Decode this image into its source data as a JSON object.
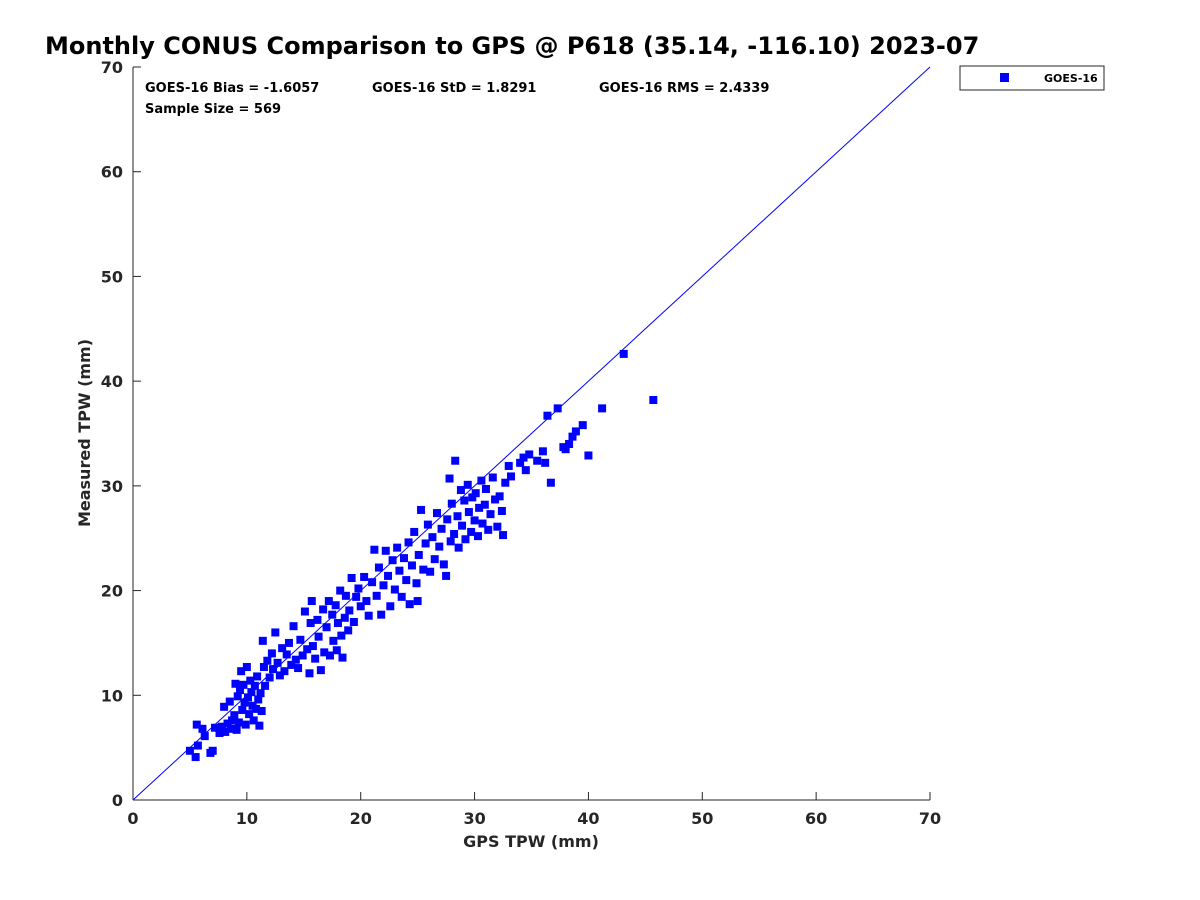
{
  "chart_data": {
    "type": "scatter",
    "title": "Monthly CONUS Comparison to GPS @ P618 (35.14, -116.10) 2023-07",
    "xlabel": "GPS TPW (mm)",
    "ylabel": "Measured TPW (mm)",
    "xlim": [
      0,
      70
    ],
    "ylim": [
      0,
      70
    ],
    "xticks": [
      "0",
      "10",
      "20",
      "30",
      "40",
      "50",
      "60",
      "70"
    ],
    "yticks": [
      "0",
      "10",
      "20",
      "30",
      "40",
      "50",
      "60",
      "70"
    ],
    "grid": false,
    "legend_position": "outside-top-right",
    "reference_line": {
      "from": [
        0,
        0
      ],
      "to": [
        70,
        70
      ],
      "color": "#0000ff"
    },
    "stats": {
      "bias": "GOES-16 Bias = -1.6057",
      "std": "GOES-16 StD = 1.8291",
      "rms": "GOES-16 RMS = 2.4339",
      "sample": "Sample Size = 569"
    },
    "series": [
      {
        "name": "GOES-16",
        "color": "#0000ff",
        "marker": "square",
        "points": [
          [
            5.0,
            4.7
          ],
          [
            5.5,
            4.1
          ],
          [
            5.7,
            5.2
          ],
          [
            5.6,
            7.2
          ],
          [
            6.1,
            6.8
          ],
          [
            6.3,
            6.1
          ],
          [
            6.8,
            4.5
          ],
          [
            7.0,
            4.7
          ],
          [
            7.2,
            6.9
          ],
          [
            7.6,
            6.4
          ],
          [
            7.8,
            7.0
          ],
          [
            8.0,
            8.9
          ],
          [
            8.1,
            6.5
          ],
          [
            8.3,
            7.3
          ],
          [
            8.5,
            9.4
          ],
          [
            8.6,
            6.8
          ],
          [
            8.7,
            7.6
          ],
          [
            8.9,
            8.1
          ],
          [
            9.0,
            11.1
          ],
          [
            9.1,
            6.7
          ],
          [
            9.2,
            9.9
          ],
          [
            9.3,
            7.4
          ],
          [
            9.4,
            10.5
          ],
          [
            9.5,
            12.3
          ],
          [
            9.6,
            8.6
          ],
          [
            9.7,
            11.0
          ],
          [
            9.8,
            9.3
          ],
          [
            9.9,
            7.2
          ],
          [
            10.0,
            12.7
          ],
          [
            10.1,
            9.8
          ],
          [
            10.2,
            8.2
          ],
          [
            10.3,
            11.4
          ],
          [
            10.4,
            10.3
          ],
          [
            10.5,
            9.0
          ],
          [
            10.6,
            7.6
          ],
          [
            10.7,
            10.9
          ],
          [
            10.8,
            8.7
          ],
          [
            10.9,
            11.8
          ],
          [
            11.0,
            9.6
          ],
          [
            11.1,
            7.1
          ],
          [
            11.2,
            10.2
          ],
          [
            11.3,
            8.5
          ],
          [
            11.4,
            15.2
          ],
          [
            11.5,
            12.7
          ],
          [
            11.6,
            10.9
          ],
          [
            11.8,
            13.3
          ],
          [
            12.0,
            11.7
          ],
          [
            12.2,
            14.0
          ],
          [
            12.3,
            12.5
          ],
          [
            12.5,
            16.0
          ],
          [
            12.7,
            13.1
          ],
          [
            12.9,
            11.9
          ],
          [
            13.1,
            14.5
          ],
          [
            13.3,
            12.3
          ],
          [
            13.5,
            13.9
          ],
          [
            13.7,
            15.0
          ],
          [
            13.9,
            12.9
          ],
          [
            14.1,
            16.6
          ],
          [
            14.3,
            13.4
          ],
          [
            14.5,
            12.6
          ],
          [
            14.7,
            15.3
          ],
          [
            14.9,
            13.8
          ],
          [
            15.1,
            18.0
          ],
          [
            15.3,
            14.4
          ],
          [
            15.5,
            12.1
          ],
          [
            15.6,
            16.9
          ],
          [
            15.7,
            19.0
          ],
          [
            15.8,
            14.7
          ],
          [
            16.0,
            13.5
          ],
          [
            16.2,
            17.2
          ],
          [
            16.3,
            15.6
          ],
          [
            16.5,
            12.4
          ],
          [
            16.7,
            18.2
          ],
          [
            16.8,
            14.1
          ],
          [
            17.0,
            16.5
          ],
          [
            17.2,
            19.0
          ],
          [
            17.3,
            13.8
          ],
          [
            17.5,
            17.7
          ],
          [
            17.6,
            15.2
          ],
          [
            17.8,
            18.6
          ],
          [
            17.9,
            14.3
          ],
          [
            18.0,
            16.9
          ],
          [
            18.2,
            20.0
          ],
          [
            18.3,
            15.7
          ],
          [
            18.4,
            13.6
          ],
          [
            18.6,
            17.4
          ],
          [
            18.7,
            19.5
          ],
          [
            18.9,
            16.2
          ],
          [
            19.0,
            18.1
          ],
          [
            19.2,
            21.2
          ],
          [
            19.4,
            17.0
          ],
          [
            19.6,
            19.4
          ],
          [
            19.8,
            20.2
          ],
          [
            20.0,
            18.5
          ],
          [
            20.3,
            21.3
          ],
          [
            20.5,
            19.0
          ],
          [
            20.7,
            17.6
          ],
          [
            21.0,
            20.8
          ],
          [
            21.2,
            23.9
          ],
          [
            21.4,
            19.5
          ],
          [
            21.6,
            22.2
          ],
          [
            21.8,
            17.7
          ],
          [
            22.0,
            20.5
          ],
          [
            22.2,
            23.8
          ],
          [
            22.4,
            21.4
          ],
          [
            22.6,
            18.5
          ],
          [
            22.8,
            22.9
          ],
          [
            23.0,
            20.1
          ],
          [
            23.2,
            24.1
          ],
          [
            23.4,
            21.9
          ],
          [
            23.6,
            19.4
          ],
          [
            23.8,
            23.1
          ],
          [
            24.0,
            21.0
          ],
          [
            24.2,
            24.6
          ],
          [
            24.3,
            18.7
          ],
          [
            24.5,
            22.4
          ],
          [
            24.7,
            25.6
          ],
          [
            24.9,
            20.7
          ],
          [
            25.0,
            19.0
          ],
          [
            25.1,
            23.4
          ],
          [
            25.3,
            27.7
          ],
          [
            25.5,
            22.0
          ],
          [
            25.7,
            24.5
          ],
          [
            25.9,
            26.3
          ],
          [
            26.1,
            21.8
          ],
          [
            26.3,
            25.1
          ],
          [
            26.5,
            23.0
          ],
          [
            26.7,
            27.4
          ],
          [
            26.9,
            24.2
          ],
          [
            27.1,
            25.9
          ],
          [
            27.3,
            22.5
          ],
          [
            27.5,
            21.4
          ],
          [
            27.6,
            26.8
          ],
          [
            27.8,
            30.7
          ],
          [
            27.9,
            24.7
          ],
          [
            28.0,
            28.3
          ],
          [
            28.2,
            25.4
          ],
          [
            28.3,
            32.4
          ],
          [
            28.5,
            27.1
          ],
          [
            28.6,
            24.1
          ],
          [
            28.8,
            29.6
          ],
          [
            28.9,
            26.2
          ],
          [
            29.1,
            28.6
          ],
          [
            29.2,
            24.9
          ],
          [
            29.4,
            30.1
          ],
          [
            29.5,
            27.5
          ],
          [
            29.7,
            25.6
          ],
          [
            29.8,
            28.9
          ],
          [
            30.0,
            26.7
          ],
          [
            30.1,
            29.3
          ],
          [
            30.3,
            25.2
          ],
          [
            30.4,
            27.9
          ],
          [
            30.6,
            30.5
          ],
          [
            30.7,
            26.4
          ],
          [
            30.9,
            28.2
          ],
          [
            31.0,
            29.7
          ],
          [
            31.2,
            25.8
          ],
          [
            31.4,
            27.3
          ],
          [
            31.6,
            30.8
          ],
          [
            31.8,
            28.7
          ],
          [
            32.0,
            26.1
          ],
          [
            32.2,
            29.0
          ],
          [
            32.4,
            27.6
          ],
          [
            32.5,
            25.3
          ],
          [
            32.7,
            30.3
          ],
          [
            33.0,
            31.9
          ],
          [
            33.2,
            30.9
          ],
          [
            34.0,
            32.2
          ],
          [
            34.3,
            32.7
          ],
          [
            34.5,
            31.5
          ],
          [
            34.8,
            33.0
          ],
          [
            35.5,
            32.4
          ],
          [
            36.0,
            33.3
          ],
          [
            36.2,
            32.2
          ],
          [
            36.4,
            36.7
          ],
          [
            36.7,
            30.3
          ],
          [
            37.3,
            37.4
          ],
          [
            37.8,
            33.7
          ],
          [
            38.0,
            33.5
          ],
          [
            38.3,
            34.0
          ],
          [
            38.6,
            34.7
          ],
          [
            38.9,
            35.2
          ],
          [
            39.5,
            35.8
          ],
          [
            40.0,
            32.9
          ],
          [
            41.2,
            37.4
          ],
          [
            43.1,
            42.6
          ],
          [
            45.7,
            38.2
          ]
        ]
      }
    ]
  }
}
